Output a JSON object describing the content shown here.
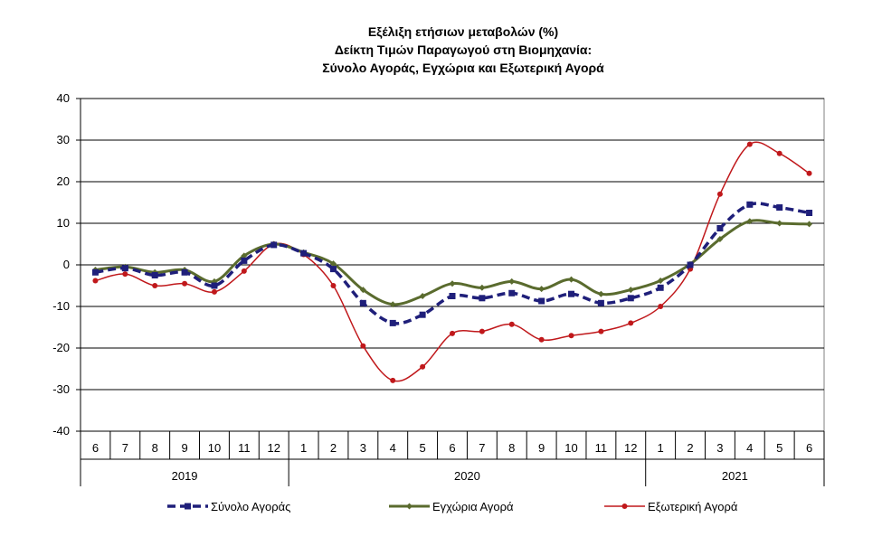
{
  "chart_data": {
    "type": "line",
    "title": [
      "Εξέλιξη ετήσιων μεταβολών (%)",
      "Δείκτη Τιμών Παραγωγού στη Βιομηχανία:",
      "Σύνολο Αγοράς, Εγχώρια και Εξωτερική Αγορά"
    ],
    "categories": [
      "6",
      "7",
      "8",
      "9",
      "10",
      "11",
      "12",
      "1",
      "2",
      "3",
      "4",
      "5",
      "6",
      "7",
      "8",
      "9",
      "10",
      "11",
      "12",
      "1",
      "2",
      "3",
      "4",
      "5",
      "6"
    ],
    "years": [
      {
        "label": "2019",
        "start": 0,
        "end": 6
      },
      {
        "label": "2020",
        "start": 7,
        "end": 18
      },
      {
        "label": "2021",
        "start": 19,
        "end": 24
      }
    ],
    "ylim": [
      -40,
      40
    ],
    "yticks": [
      -40,
      -30,
      -20,
      -10,
      0,
      10,
      20,
      30,
      40
    ],
    "grid": true,
    "legend_position": "bottom",
    "series": [
      {
        "name": "Σύνολο Αγοράς",
        "color": "#1f1f7a",
        "style": "dashed",
        "marker": "square",
        "values": [
          -1.8,
          -0.8,
          -2.5,
          -1.8,
          -5.0,
          1.0,
          4.8,
          2.8,
          -1.0,
          -9.2,
          -14.0,
          -12.0,
          -7.5,
          -8.0,
          -6.8,
          -8.7,
          -7.0,
          -9.2,
          -8.0,
          -5.5,
          0.0,
          8.8,
          14.5,
          13.8,
          12.5
        ]
      },
      {
        "name": "Εγχώρια Αγορά",
        "color": "#5a6b2e",
        "style": "solid",
        "marker": "diamond",
        "values": [
          -1.2,
          -0.5,
          -1.8,
          -1.2,
          -4.0,
          2.2,
          5.0,
          3.0,
          0.3,
          -6.0,
          -9.5,
          -7.5,
          -4.5,
          -5.5,
          -4.0,
          -5.8,
          -3.5,
          -7.0,
          -6.0,
          -3.8,
          0.2,
          6.2,
          10.5,
          10.0,
          9.8
        ]
      },
      {
        "name": "Εξωτερική Αγορά",
        "color": "#c0181b",
        "style": "solid",
        "marker": "circle",
        "values": [
          -3.8,
          -2.2,
          -5.0,
          -4.5,
          -6.5,
          -1.5,
          5.0,
          2.5,
          -5.0,
          -19.5,
          -27.8,
          -24.5,
          -16.5,
          -16.0,
          -14.3,
          -18.0,
          -17.0,
          -16.0,
          -14.0,
          -10.0,
          -1.0,
          17.0,
          29.0,
          26.8,
          22.0
        ]
      }
    ]
  }
}
